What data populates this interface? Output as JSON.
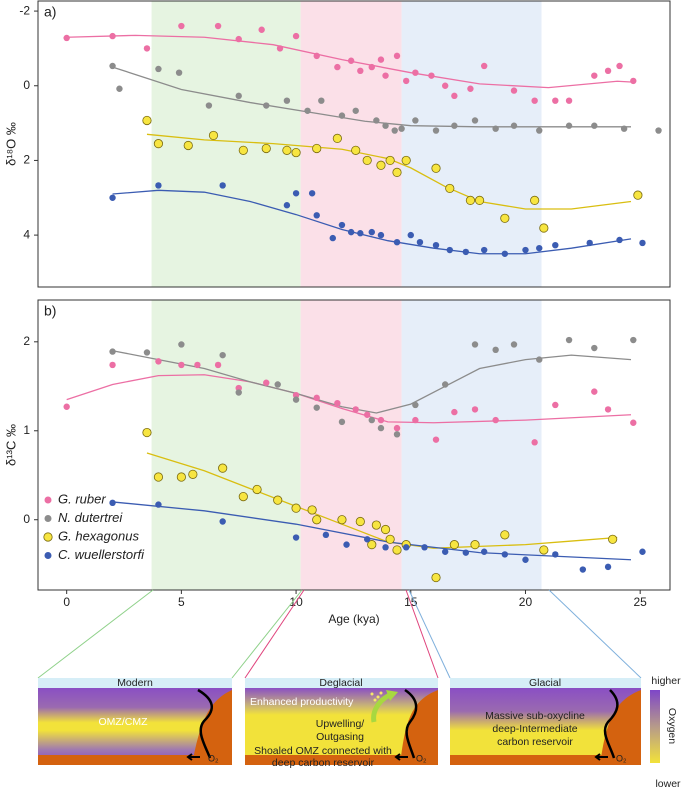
{
  "chart_data": [
    {
      "type": "scatter",
      "panel_label": "a)",
      "ylabel": "δ¹⁸O ‰",
      "xlim": [
        -1.25,
        26.3
      ],
      "ylim": [
        -2.27,
        5.39
      ],
      "y_inverted": true,
      "yticks": [
        -2,
        0,
        2,
        4
      ],
      "shaded_periods": [
        {
          "start": 3.7,
          "end": 10.2,
          "color": "#e6f4e1"
        },
        {
          "start": 10.2,
          "end": 14.6,
          "color": "#fbe0e8"
        },
        {
          "start": 14.6,
          "end": 20.7,
          "color": "#e6eef9"
        }
      ],
      "series": [
        {
          "color": "#ec6fa4",
          "x": [
            0,
            2,
            3.5,
            5,
            6.6,
            7.5,
            8.5,
            9.3,
            10,
            10.9,
            11.8,
            12.4,
            12.8,
            13.3,
            13.7,
            13.9,
            14.4,
            14.8,
            15.2,
            15.9,
            16.5,
            16.9,
            17.6,
            18.2,
            19.5,
            20.4,
            21.3,
            21.9,
            23,
            23.6,
            24.1,
            24.7
          ],
          "values": [
            -1.28,
            -1.33,
            -1.0,
            -1.6,
            -1.6,
            -1.25,
            -1.5,
            -1.0,
            -1.33,
            -0.8,
            -0.5,
            -0.67,
            -0.4,
            -0.5,
            -0.7,
            -0.27,
            -0.8,
            -0.13,
            -0.35,
            -0.27,
            0,
            0.27,
            0.08,
            -0.53,
            0.13,
            0.4,
            0.4,
            0.4,
            -0.27,
            -0.4,
            -0.53,
            -0.13
          ],
          "fit": {
            "x": [
              0,
              3,
              6,
              9,
              12,
              15,
              18,
              21,
              24,
              24.6
            ],
            "values": [
              -1.3,
              -1.35,
              -1.3,
              -1.1,
              -0.7,
              -0.35,
              -0.05,
              0.05,
              -0.12,
              -0.1
            ]
          }
        },
        {
          "color": "#8c8c8c",
          "x": [
            2,
            2.3,
            4,
            4.9,
            6.2,
            7.5,
            8.7,
            9.6,
            10.5,
            11.1,
            12,
            12.6,
            13.5,
            13.9,
            14.3,
            14.6,
            15.2,
            16.1,
            16.9,
            17.8,
            18.7,
            19.5,
            20.6,
            21.9,
            23,
            24.3,
            25.8
          ],
          "values": [
            -0.53,
            0.08,
            -0.45,
            -0.35,
            0.53,
            0.27,
            0.53,
            0.4,
            0.67,
            0.4,
            0.8,
            0.67,
            0.93,
            1.07,
            1.2,
            1.15,
            0.93,
            1.2,
            1.07,
            0.93,
            1.15,
            1.07,
            1.2,
            1.07,
            1.07,
            1.15,
            1.2
          ],
          "fit": {
            "x": [
              2,
              5,
              8,
              11,
              13,
              15,
              18,
              21,
              24.6
            ],
            "values": [
              -0.5,
              0.1,
              0.45,
              0.75,
              0.95,
              1.07,
              1.1,
              1.1,
              1.1
            ]
          }
        },
        {
          "color": "#f7e541",
          "x": [
            3.5,
            4,
            5.3,
            6.4,
            7.7,
            8.7,
            9.6,
            10,
            10.9,
            11.8,
            12.6,
            13.1,
            13.7,
            14.1,
            14.4,
            14.8,
            16.1,
            16.7,
            17.6,
            18,
            19.1,
            20.4,
            20.8,
            24.9
          ],
          "values": [
            0.93,
            1.55,
            1.6,
            1.33,
            1.73,
            1.68,
            1.73,
            1.79,
            1.68,
            1.41,
            1.73,
            2,
            2.13,
            2,
            2.32,
            2,
            2.21,
            2.75,
            3.07,
            3.07,
            3.55,
            3.07,
            3.81,
            2.93
          ],
          "fit": {
            "x": [
              3.5,
              6,
              9,
              12,
              14,
              15,
              16.5,
              18,
              20,
              22,
              24.6
            ],
            "values": [
              1.3,
              1.45,
              1.55,
              1.7,
              1.95,
              2.2,
              2.7,
              3.1,
              3.3,
              3.3,
              3.1
            ]
          }
        },
        {
          "color": "#3b5cb2",
          "x": [
            2,
            4,
            6.8,
            9.6,
            10,
            10.7,
            10.9,
            11.6,
            12,
            12.4,
            12.8,
            13.3,
            13.7,
            14.4,
            15,
            15.4,
            16.1,
            16.7,
            17.4,
            18.2,
            19.1,
            20,
            20.6,
            21.3,
            22.8,
            24.1,
            25.1
          ],
          "values": [
            3.0,
            2.67,
            2.67,
            3.2,
            2.88,
            2.88,
            3.47,
            4.08,
            3.73,
            3.92,
            3.95,
            3.92,
            4.0,
            4.19,
            4.0,
            4.19,
            4.27,
            4.4,
            4.45,
            4.4,
            4.5,
            4.4,
            4.35,
            4.27,
            4.21,
            4.13,
            4.21
          ],
          "fit": {
            "x": [
              2,
              4,
              6,
              8,
              10,
              12,
              14,
              16,
              18,
              20,
              22,
              24.6
            ],
            "values": [
              2.9,
              2.8,
              2.85,
              3.1,
              3.45,
              3.85,
              4.15,
              4.35,
              4.5,
              4.5,
              4.35,
              4.1
            ]
          }
        }
      ]
    },
    {
      "type": "scatter",
      "panel_label": "b)",
      "ylabel": "δ¹³C ‰",
      "xlabel": "Age (kya)",
      "xlim": [
        -1.25,
        26.3
      ],
      "xticks": [
        0,
        5,
        10,
        15,
        20,
        25
      ],
      "ylim": [
        -0.79,
        2.47
      ],
      "yticks": [
        0,
        1,
        2
      ],
      "legend": "lower left",
      "shaded_periods": [
        {
          "start": 3.7,
          "end": 10.2,
          "color": "#e6f4e1"
        },
        {
          "start": 10.2,
          "end": 14.6,
          "color": "#fbe0e8"
        },
        {
          "start": 14.6,
          "end": 20.7,
          "color": "#e6eef9"
        }
      ],
      "series": [
        {
          "name": "G. ruber",
          "color": "#ec6fa4",
          "x": [
            0,
            2,
            4,
            5,
            5.7,
            6.6,
            7.5,
            8.7,
            10,
            10.9,
            11.8,
            12.6,
            13.1,
            13.7,
            14.4,
            15.2,
            16.1,
            16.9,
            17.8,
            18.7,
            20.4,
            21.3,
            23,
            23.6,
            24.7
          ],
          "values": [
            1.27,
            1.74,
            1.78,
            1.74,
            1.74,
            1.74,
            1.48,
            1.54,
            1.4,
            1.37,
            1.31,
            1.24,
            1.18,
            1.12,
            1.03,
            1.12,
            0.9,
            1.21,
            1.24,
            1.12,
            0.87,
            1.29,
            1.44,
            1.24,
            1.09
          ],
          "fit": {
            "x": [
              0,
              2,
              4,
              6,
              8,
              10,
              12,
              14,
              16,
              20,
              24.6
            ],
            "values": [
              1.35,
              1.52,
              1.62,
              1.63,
              1.55,
              1.42,
              1.25,
              1.1,
              1.09,
              1.12,
              1.18
            ]
          }
        },
        {
          "name": "N. dutertrei",
          "color": "#8c8c8c",
          "x": [
            2,
            3.5,
            5,
            6.8,
            7.5,
            9.2,
            10,
            10.9,
            12,
            13.3,
            13.7,
            14.4,
            15.2,
            16.5,
            17.8,
            18.7,
            19.5,
            20.6,
            21.9,
            23,
            24.7
          ],
          "values": [
            1.89,
            1.88,
            1.97,
            1.85,
            1.43,
            1.52,
            1.35,
            1.26,
            1.1,
            1.12,
            1.03,
            0.96,
            1.29,
            1.52,
            1.97,
            1.91,
            1.97,
            1.8,
            2.02,
            1.93,
            2.02
          ],
          "fit": {
            "x": [
              2,
              4,
              6,
              8,
              10,
              12,
              13.5,
              15,
              16.5,
              18,
              20,
              22,
              24.6
            ],
            "values": [
              1.9,
              1.8,
              1.7,
              1.55,
              1.42,
              1.27,
              1.2,
              1.3,
              1.5,
              1.7,
              1.8,
              1.85,
              1.8
            ]
          }
        },
        {
          "name": "G. hexagonus",
          "color": "#f7e541",
          "x": [
            3.5,
            4,
            5,
            5.5,
            6.8,
            7.7,
            8.3,
            9.2,
            10,
            10.7,
            10.9,
            12,
            12.8,
            13.3,
            13.5,
            13.9,
            14.1,
            14.4,
            14.8,
            16.1,
            16.9,
            17.8,
            19.1,
            20.8,
            23.8
          ],
          "values": [
            0.98,
            0.48,
            0.48,
            0.51,
            0.58,
            0.26,
            0.34,
            0.22,
            0.13,
            0.11,
            0,
            0,
            -0.02,
            -0.28,
            -0.06,
            -0.11,
            -0.22,
            -0.34,
            -0.28,
            -0.65,
            -0.28,
            -0.28,
            -0.17,
            -0.34,
            -0.22
          ],
          "fit": {
            "x": [
              3.5,
              6,
              8,
              10,
              12,
              14,
              16,
              18,
              20,
              22,
              24
            ],
            "values": [
              0.75,
              0.55,
              0.35,
              0.15,
              -0.05,
              -0.25,
              -0.32,
              -0.3,
              -0.28,
              -0.24,
              -0.2
            ]
          }
        },
        {
          "name": "C. wuellerstorfi",
          "color": "#3b5cb2",
          "x": [
            2,
            4,
            6.8,
            10,
            11.3,
            12.2,
            13.1,
            13.9,
            14.8,
            15.6,
            16.5,
            17.4,
            18.2,
            19.1,
            20,
            21.3,
            22.5,
            23.6,
            25.1
          ],
          "values": [
            0.19,
            0.17,
            -0.02,
            -0.2,
            -0.17,
            -0.28,
            -0.22,
            -0.31,
            -0.31,
            -0.31,
            -0.36,
            -0.37,
            -0.36,
            -0.39,
            -0.45,
            -0.39,
            -0.56,
            -0.53,
            -0.36
          ],
          "fit": {
            "x": [
              2,
              6,
              10,
              14,
              18,
              24.6
            ],
            "values": [
              0.2,
              0.1,
              -0.05,
              -0.25,
              -0.37,
              -0.45
            ]
          }
        }
      ]
    }
  ],
  "schematics": [
    {
      "title": "Modern",
      "labels": [
        "OMZ/CMZ"
      ],
      "oxygen_label": "O₂"
    },
    {
      "title": "Deglacial",
      "labels": [
        "Enhanced productivity",
        "Upwelling/",
        "Outgasing",
        "Shoaled OMZ connected with",
        "deep carbon reservoir"
      ],
      "oxygen_label": "O₂"
    },
    {
      "title": "Glacial",
      "labels": [
        "Massive sub-oxycline",
        "deep-Intermediate",
        "carbon reservoir"
      ],
      "oxygen_label": "O₂"
    }
  ],
  "oxygen_scale": {
    "high": "higher",
    "title": "Oxygen",
    "low": "lower"
  }
}
